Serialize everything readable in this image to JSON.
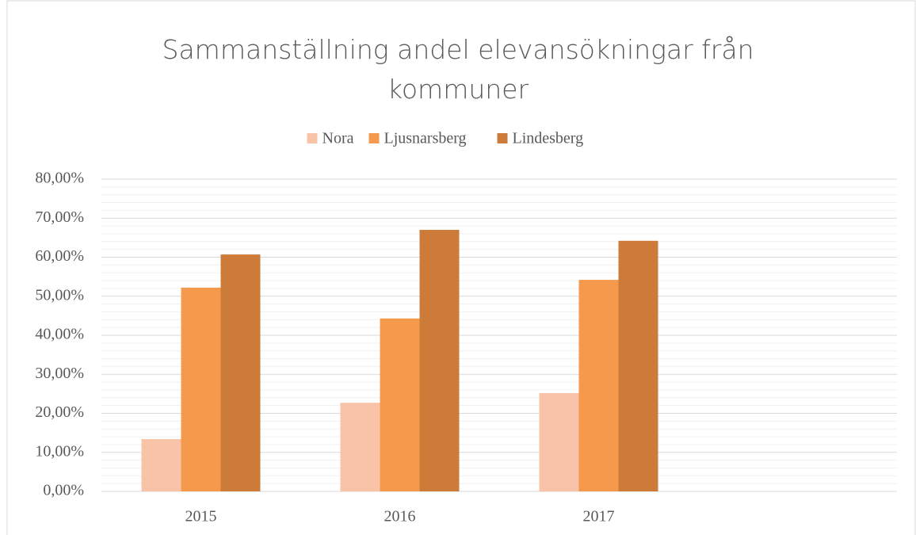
{
  "chart_data": {
    "type": "bar",
    "title": "Sammanställning andel elevansökningar från kommuner",
    "categories": [
      "2015",
      "2016",
      "2017",
      null
    ],
    "series": [
      {
        "name": "Nora",
        "color": "#f8c3a7",
        "values": [
          13.4,
          22.7,
          25.2,
          null
        ]
      },
      {
        "name": "Ljusnarsberg",
        "color": "#f59a4c",
        "values": [
          52.2,
          44.3,
          54.2,
          null
        ]
      },
      {
        "name": "Lindesberg",
        "color": "#cd7b38",
        "values": [
          60.7,
          67.0,
          64.2,
          null
        ]
      }
    ],
    "ylim": [
      0,
      80
    ],
    "yticks": [
      {
        "value": 0,
        "label": "0,00%"
      },
      {
        "value": 10,
        "label": "10,00%"
      },
      {
        "value": 20,
        "label": "20,00%"
      },
      {
        "value": 30,
        "label": "30,00%"
      },
      {
        "value": 40,
        "label": "40,00%"
      },
      {
        "value": 50,
        "label": "50,00%"
      },
      {
        "value": 60,
        "label": "60,00%"
      },
      {
        "value": 70,
        "label": "70,00%"
      },
      {
        "value": 80,
        "label": "80,00%"
      }
    ],
    "minor_yticks": [
      2,
      4,
      6,
      8,
      12,
      14,
      16,
      18,
      22,
      24,
      26,
      28,
      32,
      34,
      36,
      38,
      42,
      44,
      46,
      48,
      52,
      54,
      56,
      58,
      62,
      64,
      66,
      68,
      72,
      74,
      76,
      78
    ],
    "grid": true,
    "legend": "top"
  }
}
